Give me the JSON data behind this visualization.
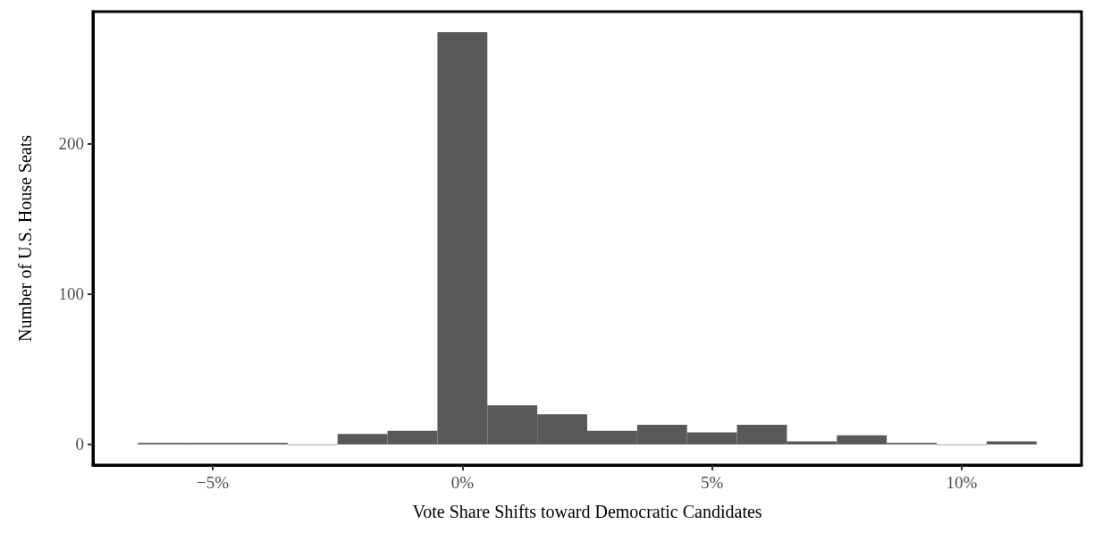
{
  "chart_data": {
    "type": "histogram",
    "xlabel": "Vote Share Shifts toward Democratic Candidates",
    "ylabel": "Number of U.S. House Seats",
    "bins": [
      -6.5,
      -5.5,
      -4.5,
      -3.5,
      -2.5,
      -1.5,
      -0.5,
      0.5,
      1.5,
      2.5,
      3.5,
      4.5,
      5.5,
      6.5,
      7.5,
      8.5,
      9.5,
      10.5,
      11.5
    ],
    "values": [
      1,
      1,
      1,
      0,
      7,
      9,
      274,
      26,
      20,
      9,
      13,
      8,
      13,
      2,
      6,
      1,
      0,
      2
    ],
    "color": "#595959",
    "xlim": [
      -7.4,
      12.4
    ],
    "xticks": [
      {
        "value": -5,
        "label": "−5%"
      },
      {
        "value": 0,
        "label": "0%"
      },
      {
        "value": 5,
        "label": "5%"
      },
      {
        "value": 10,
        "label": "10%"
      }
    ],
    "ylim": [
      -13.7,
      287.7
    ],
    "yticks": [
      0,
      100,
      200
    ],
    "grid": false
  }
}
